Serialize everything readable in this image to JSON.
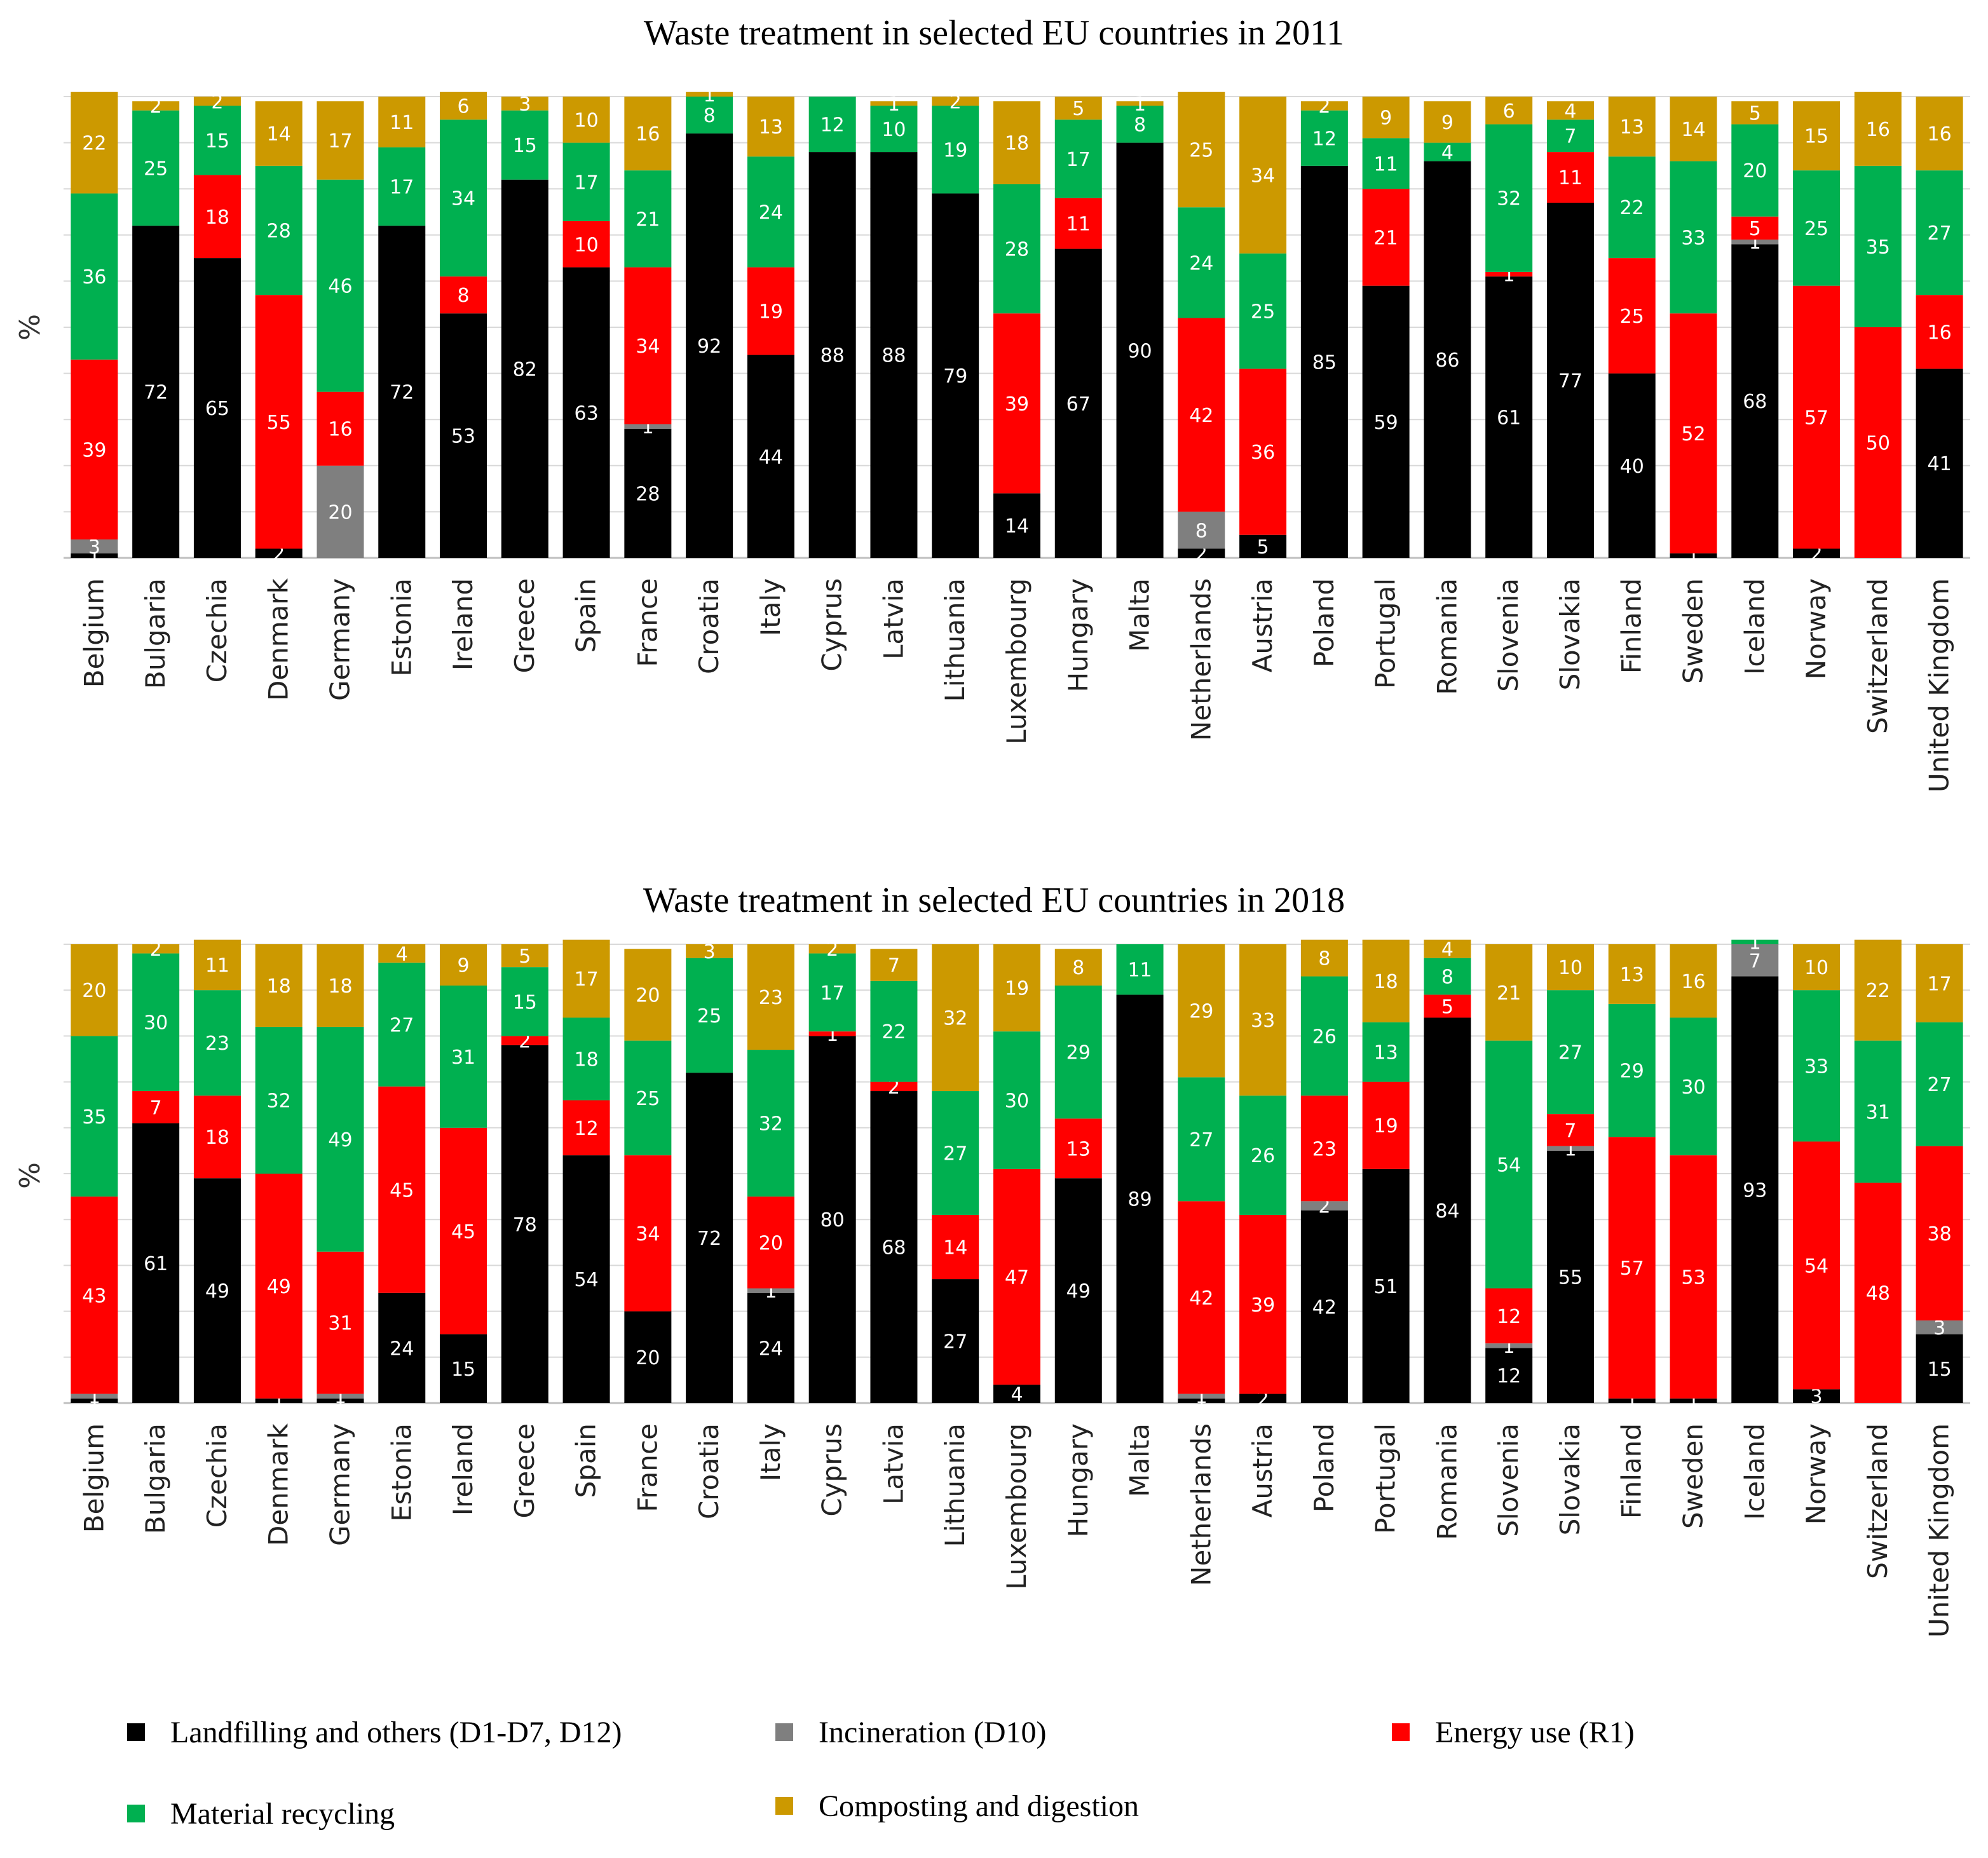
{
  "chart_data": [
    {
      "type": "bar",
      "stacked": true,
      "title": "Waste treatment in selected EU countries in 2011",
      "ylabel": "%",
      "xlabel": "",
      "ylim": [
        0,
        100
      ],
      "categories": [
        "Belgium",
        "Bulgaria",
        "Czechia",
        "Denmark",
        "Germany",
        "Estonia",
        "Ireland",
        "Greece",
        "Spain",
        "France",
        "Croatia",
        "Italy",
        "Cyprus",
        "Latvia",
        "Lithuania",
        "Luxembourg",
        "Hungary",
        "Malta",
        "Netherlands",
        "Austria",
        "Poland",
        "Portugal",
        "Romania",
        "Slovenia",
        "Slovakia",
        "Finland",
        "Sweden",
        "Iceland",
        "Norway",
        "Switzerland",
        "United Kingdom"
      ],
      "series": [
        {
          "name": "Landfilling and others (D1-D7, D12)",
          "color": "#000000",
          "label_color": "#ffffff",
          "values": [
            1,
            72,
            65,
            2,
            0,
            72,
            53,
            82,
            63,
            28,
            92,
            44,
            88,
            88,
            79,
            14,
            67,
            90,
            2,
            5,
            85,
            59,
            86,
            61,
            77,
            40,
            1,
            68,
            2,
            0,
            41
          ]
        },
        {
          "name": "Incineration (D10)",
          "color": "#7f7f7f",
          "label_color": "#ffffff",
          "values": [
            3,
            0,
            0,
            0,
            20,
            0,
            0,
            0,
            0,
            1,
            0,
            0,
            0,
            0,
            0,
            0,
            0,
            0,
            8,
            0,
            0,
            0,
            0,
            0,
            0,
            0,
            0,
            1,
            0,
            0,
            0
          ]
        },
        {
          "name": "Energy use (R1)",
          "color": "#ff0000",
          "label_color": "#ffffff",
          "values": [
            39,
            0,
            18,
            55,
            16,
            0,
            8,
            0,
            10,
            34,
            0,
            19,
            0,
            0,
            0,
            39,
            11,
            0,
            42,
            36,
            0,
            21,
            0,
            1,
            11,
            25,
            52,
            5,
            57,
            50,
            16
          ]
        },
        {
          "name": "Material recycling",
          "color": "#00b050",
          "label_color": "#ffffff",
          "values": [
            36,
            25,
            15,
            28,
            46,
            17,
            34,
            15,
            17,
            21,
            8,
            24,
            12,
            10,
            19,
            28,
            17,
            8,
            24,
            25,
            12,
            11,
            4,
            32,
            7,
            22,
            33,
            20,
            25,
            35,
            27
          ]
        },
        {
          "name": "Composting and digestion",
          "color": "#cc9900",
          "label_color": "#ffffff",
          "values": [
            22,
            2,
            2,
            14,
            17,
            11,
            6,
            3,
            10,
            16,
            1,
            13,
            0,
            1,
            2,
            18,
            5,
            1,
            25,
            34,
            2,
            9,
            9,
            6,
            4,
            13,
            14,
            5,
            15,
            16,
            16
          ]
        }
      ]
    },
    {
      "type": "bar",
      "stacked": true,
      "title": "Waste treatment in selected EU countries in 2018",
      "ylabel": "%",
      "xlabel": "",
      "ylim": [
        0,
        100
      ],
      "categories": [
        "Belgium",
        "Bulgaria",
        "Czechia",
        "Denmark",
        "Germany",
        "Estonia",
        "Ireland",
        "Greece",
        "Spain",
        "France",
        "Croatia",
        "Italy",
        "Cyprus",
        "Latvia",
        "Lithuania",
        "Luxembourg",
        "Hungary",
        "Malta",
        "Netherlands",
        "Austria",
        "Poland",
        "Portugal",
        "Romania",
        "Slovenia",
        "Slovakia",
        "Finland",
        "Sweden",
        "Iceland",
        "Norway",
        "Switzerland",
        "United Kingdom"
      ],
      "series": [
        {
          "name": "Landfilling and others (D1-D7, D12)",
          "color": "#000000",
          "label_color": "#ffffff",
          "values": [
            1,
            61,
            49,
            1,
            1,
            24,
            15,
            78,
            54,
            20,
            72,
            24,
            80,
            68,
            27,
            4,
            49,
            89,
            1,
            2,
            42,
            51,
            84,
            12,
            55,
            1,
            1,
            93,
            3,
            0,
            15
          ]
        },
        {
          "name": "Incineration (D10)",
          "color": "#7f7f7f",
          "label_color": "#ffffff",
          "values": [
            1,
            0,
            0,
            0,
            1,
            0,
            0,
            0,
            0,
            0,
            0,
            1,
            0,
            0,
            0,
            0,
            0,
            0,
            1,
            0,
            2,
            0,
            0,
            1,
            1,
            0,
            0,
            7,
            0,
            0,
            3
          ]
        },
        {
          "name": "Energy use (R1)",
          "color": "#ff0000",
          "label_color": "#ffffff",
          "values": [
            43,
            7,
            18,
            49,
            31,
            45,
            45,
            2,
            12,
            34,
            0,
            20,
            1,
            2,
            14,
            47,
            13,
            0,
            42,
            39,
            23,
            19,
            5,
            12,
            7,
            57,
            53,
            0,
            54,
            48,
            38
          ]
        },
        {
          "name": "Material recycling",
          "color": "#00b050",
          "label_color": "#ffffff",
          "values": [
            35,
            30,
            23,
            32,
            49,
            27,
            31,
            15,
            18,
            25,
            25,
            32,
            17,
            22,
            27,
            30,
            29,
            11,
            27,
            26,
            26,
            13,
            8,
            54,
            27,
            29,
            30,
            1,
            33,
            31,
            27
          ]
        },
        {
          "name": "Composting and digestion",
          "color": "#cc9900",
          "label_color": "#ffffff",
          "values": [
            20,
            2,
            11,
            18,
            18,
            4,
            9,
            5,
            17,
            20,
            3,
            23,
            2,
            7,
            32,
            19,
            8,
            0,
            29,
            33,
            8,
            18,
            4,
            21,
            10,
            13,
            16,
            0,
            10,
            22,
            17
          ]
        }
      ]
    }
  ],
  "legend": [
    {
      "label": "Landfilling and others (D1-D7, D12)",
      "color": "#000000"
    },
    {
      "label": "Incineration (D10)",
      "color": "#7f7f7f"
    },
    {
      "label": "Energy use (R1)",
      "color": "#ff0000"
    },
    {
      "label": "Material recycling",
      "color": "#00b050"
    },
    {
      "label": "Composting and digestion",
      "color": "#cc9900"
    }
  ]
}
